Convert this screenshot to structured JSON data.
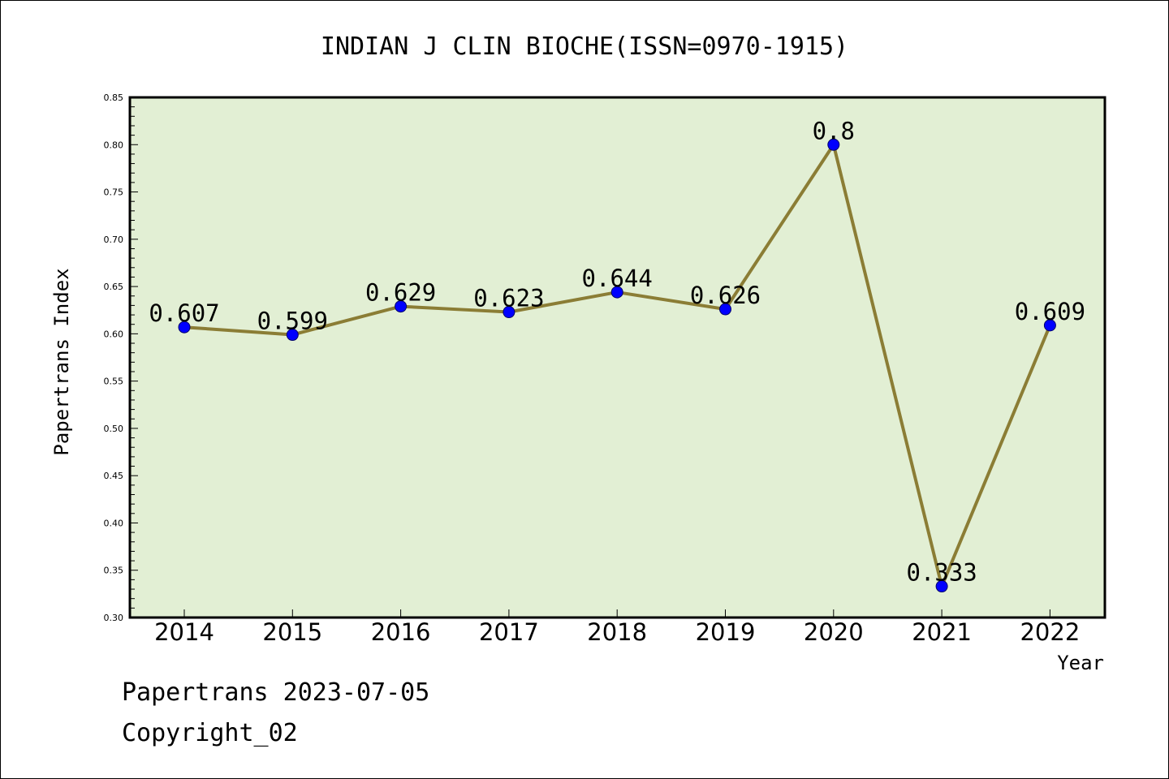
{
  "chart_data": {
    "type": "line",
    "title": "INDIAN J CLIN BIOCHE(ISSN=0970-1915)",
    "xlabel": "Year",
    "ylabel": "Papertrans Index",
    "categories": [
      "2014",
      "2015",
      "2016",
      "2017",
      "2018",
      "2019",
      "2020",
      "2021",
      "2022"
    ],
    "series": [
      {
        "values": [
          0.607,
          0.599,
          0.629,
          0.623,
          0.644,
          0.626,
          0.8,
          0.333,
          0.609
        ],
        "labels": [
          "0.607",
          "0.599",
          "0.629",
          "0.623",
          "0.644",
          "0.626",
          "0.8",
          "0.333",
          "0.609"
        ]
      }
    ],
    "ylim": [
      0.3,
      0.85
    ],
    "yticks": [
      "0.30",
      "0.35",
      "0.40",
      "0.45",
      "0.50",
      "0.55",
      "0.60",
      "0.65",
      "0.70",
      "0.75",
      "0.80",
      "0.85"
    ],
    "grid": false,
    "colors": {
      "plot_background": "#e2efd4",
      "line": "#8b7d35",
      "marker": "#0000ff"
    }
  },
  "footer": {
    "source": "Papertrans 2023-07-05",
    "copyright": "Copyright_02"
  }
}
